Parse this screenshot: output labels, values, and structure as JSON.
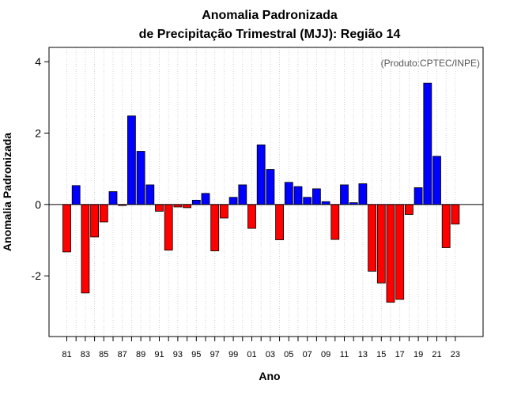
{
  "chart_data": {
    "type": "bar",
    "title": "Anomalia Padronizada",
    "subtitle": "de Precipitação Trimestral (MJJ): Região 14",
    "xlabel": "Ano",
    "ylabel": "Anomalia Padronizada",
    "credit": "(Produto:CPTEC/INPE)",
    "ylim": [
      -3.7,
      4.4
    ],
    "yticks": [
      -2,
      0,
      2,
      4
    ],
    "grid": "vertical dotted",
    "categories": [
      "1981",
      "1982",
      "1983",
      "1984",
      "1985",
      "1986",
      "1987",
      "1988",
      "1989",
      "1990",
      "1991",
      "1992",
      "1993",
      "1994",
      "1995",
      "1996",
      "1997",
      "1998",
      "1999",
      "2000",
      "2001",
      "2002",
      "2003",
      "2004",
      "2005",
      "2006",
      "2007",
      "2008",
      "2009",
      "2010",
      "2011",
      "2012",
      "2013",
      "2014",
      "2015",
      "2016",
      "2017",
      "2018",
      "2019",
      "2020",
      "2021",
      "2022",
      "2023"
    ],
    "xtick_labels": [
      "81",
      "83",
      "85",
      "87",
      "89",
      "91",
      "93",
      "95",
      "97",
      "99",
      "01",
      "03",
      "05",
      "07",
      "09",
      "11",
      "13",
      "15",
      "17",
      "19",
      "21",
      "23"
    ],
    "values": [
      -1.33,
      0.53,
      -2.48,
      -0.91,
      -0.49,
      0.36,
      -0.03,
      2.48,
      1.49,
      0.55,
      -0.19,
      -1.28,
      -0.07,
      -0.09,
      0.12,
      0.31,
      -1.3,
      -0.38,
      0.2,
      0.55,
      -0.67,
      1.67,
      0.98,
      -0.99,
      0.62,
      0.5,
      0.2,
      0.44,
      0.08,
      -0.98,
      0.55,
      0.05,
      0.58,
      -1.87,
      -2.2,
      -2.74,
      -2.66,
      -0.28,
      0.47,
      3.4,
      1.35,
      -1.21,
      -0.55
    ],
    "colors": {
      "positive": "#0000ff",
      "negative": "#ff0000",
      "zero_line": "#000000",
      "grid": "#c8c8c8"
    }
  }
}
